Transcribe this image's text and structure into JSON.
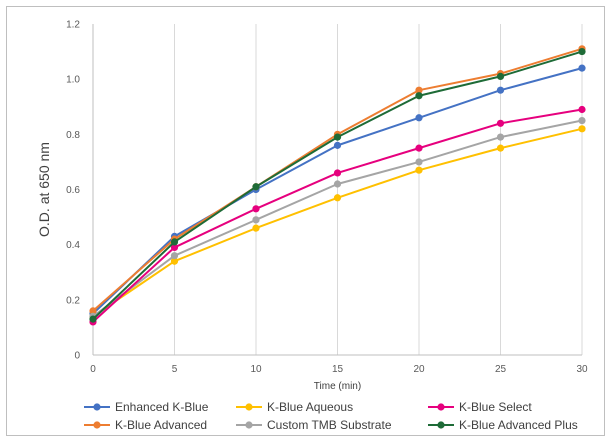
{
  "chart_data": {
    "type": "line",
    "title": "",
    "xlabel": "Time (min)",
    "ylabel": "O.D. at 650 nm",
    "x": [
      0,
      5,
      10,
      15,
      20,
      25,
      30
    ],
    "xlim": [
      0,
      30
    ],
    "ylim": [
      0,
      1.2
    ],
    "x_ticks": [
      "0",
      "5",
      "10",
      "15",
      "20",
      "25",
      "30"
    ],
    "y_ticks": [
      "0",
      "0.2",
      "0.4",
      "0.6",
      "0.8",
      "1.0",
      "1.2"
    ],
    "grid": "vertical",
    "legend_position": "bottom",
    "series": [
      {
        "name": "Enhanced K-Blue",
        "color": "#4472c4",
        "values": [
          0.15,
          0.43,
          0.6,
          0.76,
          0.86,
          0.96,
          1.04
        ]
      },
      {
        "name": "K-Blue Advanced",
        "color": "#ed7d31",
        "values": [
          0.16,
          0.42,
          0.61,
          0.8,
          0.96,
          1.02,
          1.11
        ]
      },
      {
        "name": "K-Blue Aqueous",
        "color": "#ffc000",
        "values": [
          0.14,
          0.34,
          0.46,
          0.57,
          0.67,
          0.75,
          0.82
        ]
      },
      {
        "name": "Custom TMB Substrate",
        "color": "#a5a5a5",
        "values": [
          0.14,
          0.36,
          0.49,
          0.62,
          0.7,
          0.79,
          0.85
        ]
      },
      {
        "name": "K-Blue Select",
        "color": "#e6007e",
        "values": [
          0.12,
          0.39,
          0.53,
          0.66,
          0.75,
          0.84,
          0.89
        ]
      },
      {
        "name": "K-Blue Advanced Plus",
        "color": "#1e6b37",
        "values": [
          0.13,
          0.41,
          0.61,
          0.79,
          0.94,
          1.01,
          1.1
        ]
      }
    ]
  }
}
